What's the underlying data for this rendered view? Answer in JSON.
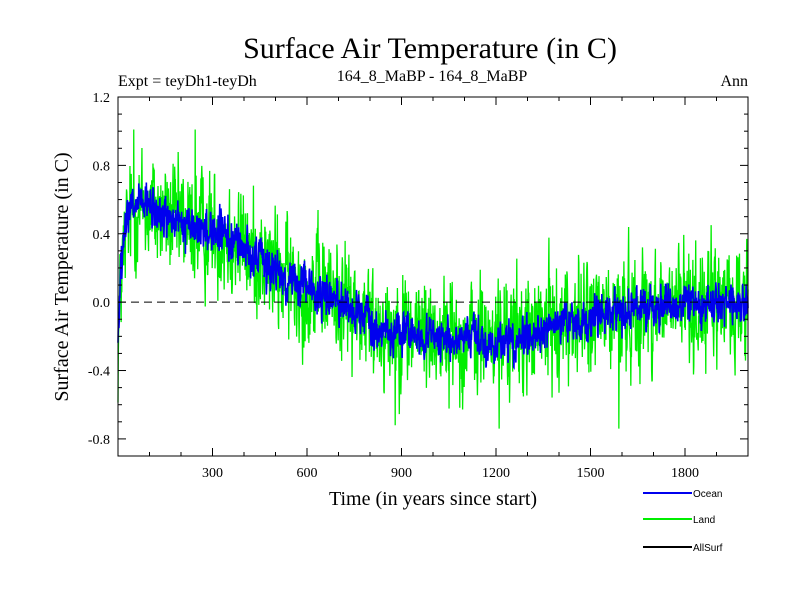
{
  "chart_data": {
    "type": "line",
    "title": "Surface Air Temperature (in C)",
    "subtitle_left": "Expt = teyDh1-teyDh",
    "subtitle_center": "164_8_MaBP - 164_8_MaBP",
    "subtitle_right": "Ann",
    "xlabel": "Time (in years since start)",
    "ylabel": "Surface Air Temperature (in C)",
    "xlim": [
      0,
      2000
    ],
    "ylim": [
      -0.9,
      1.2
    ],
    "xticks": [
      300,
      600,
      900,
      1200,
      1500,
      1800
    ],
    "xtick_labels": [
      "300",
      "600",
      "900",
      "1200",
      "1500",
      "1800"
    ],
    "yticks": [
      -0.8,
      -0.4,
      0.0,
      0.4,
      0.8,
      1.2
    ],
    "ytick_labels": [
      "-0.8",
      "-0.4",
      "0.0",
      "0.4",
      "0.8",
      "1.2"
    ],
    "zero_line": {
      "y": 0.0,
      "style": "dashed"
    },
    "legend_position": "bottom-right",
    "series": [
      {
        "name": "Land",
        "color": "#00ee00",
        "x": [
          0,
          10,
          30,
          60,
          100,
          150,
          200,
          250,
          300,
          350,
          400,
          450,
          500,
          550,
          600,
          650,
          700,
          750,
          800,
          850,
          900,
          950,
          1000,
          1050,
          1100,
          1150,
          1200,
          1250,
          1300,
          1350,
          1400,
          1450,
          1500,
          1550,
          1600,
          1650,
          1700,
          1750,
          1800,
          1850,
          1900,
          1950,
          2000
        ],
        "mean": [
          -0.3,
          0.15,
          0.45,
          0.55,
          0.55,
          0.5,
          0.45,
          0.43,
          0.42,
          0.38,
          0.33,
          0.25,
          0.18,
          0.12,
          0.08,
          0.06,
          0.03,
          -0.05,
          -0.12,
          -0.15,
          -0.15,
          -0.17,
          -0.18,
          -0.2,
          -0.22,
          -0.2,
          -0.22,
          -0.2,
          -0.18,
          -0.15,
          -0.12,
          -0.1,
          -0.1,
          -0.08,
          -0.06,
          -0.04,
          -0.02,
          -0.03,
          0.0,
          -0.03,
          0.0,
          -0.02,
          0.0
        ],
        "amplitude": 0.24,
        "peaks": [
          {
            "x": 50,
            "value": 1.01
          },
          {
            "x": 245,
            "value": 1.01
          },
          {
            "x": 880,
            "value": -0.72
          },
          {
            "x": 1210,
            "value": -0.74
          },
          {
            "x": 1590,
            "value": -0.74
          }
        ]
      },
      {
        "name": "Ocean",
        "color": "#0000ee",
        "x": [
          0,
          10,
          30,
          60,
          100,
          150,
          200,
          250,
          300,
          350,
          400,
          450,
          500,
          550,
          600,
          650,
          700,
          750,
          800,
          850,
          900,
          950,
          1000,
          1050,
          1100,
          1150,
          1200,
          1250,
          1300,
          1350,
          1400,
          1450,
          1500,
          1550,
          1600,
          1650,
          1700,
          1750,
          1800,
          1850,
          1900,
          1950,
          2000
        ],
        "mean": [
          -0.2,
          0.2,
          0.5,
          0.58,
          0.55,
          0.5,
          0.45,
          0.43,
          0.42,
          0.38,
          0.32,
          0.25,
          0.18,
          0.12,
          0.08,
          0.05,
          0.02,
          -0.06,
          -0.12,
          -0.17,
          -0.18,
          -0.2,
          -0.2,
          -0.22,
          -0.24,
          -0.22,
          -0.24,
          -0.22,
          -0.2,
          -0.17,
          -0.13,
          -0.11,
          -0.1,
          -0.08,
          -0.06,
          -0.04,
          -0.02,
          -0.02,
          0.0,
          -0.02,
          0.0,
          -0.01,
          0.0
        ],
        "amplitude": 0.09
      },
      {
        "name": "AllSurf",
        "color": "#000000",
        "x": [],
        "mean": [],
        "amplitude": 0
      }
    ]
  }
}
